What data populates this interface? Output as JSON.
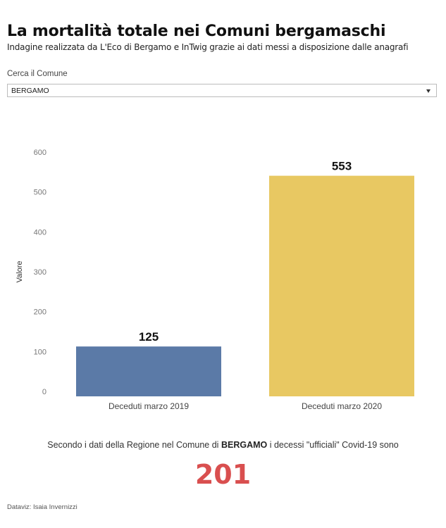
{
  "header": {
    "title": "La mortalità totale nei Comuni bergamaschi",
    "subtitle": "Indagine realizzata da L'Eco di Bergamo e InTwig grazie ai dati messi a disposizione dalle anagrafi"
  },
  "filter": {
    "label": "Cerca il Comune",
    "selected": "BERGAMO"
  },
  "chart_data": {
    "type": "bar",
    "categories": [
      "Deceduti marzo 2019",
      "Deceduti marzo 2020"
    ],
    "values": [
      125,
      553
    ],
    "data_labels": [
      "125",
      "553"
    ],
    "colors": [
      "#5b7aa7",
      "#e8c862"
    ],
    "ylabel": "Valore",
    "yticks": [
      0,
      100,
      200,
      300,
      400,
      500,
      600
    ],
    "ylim": [
      0,
      600
    ],
    "grid": false
  },
  "note": {
    "prefix": "Secondo i dati della Regione nel Comune di",
    "comune": "BERGAMO",
    "suffix": "i decessi \"ufficiali\" Covid-19 sono"
  },
  "covid_deaths": "201",
  "credit": "Dataviz: Isaia Invernizzi",
  "colors": {
    "accent_number": "#d94f4f"
  }
}
